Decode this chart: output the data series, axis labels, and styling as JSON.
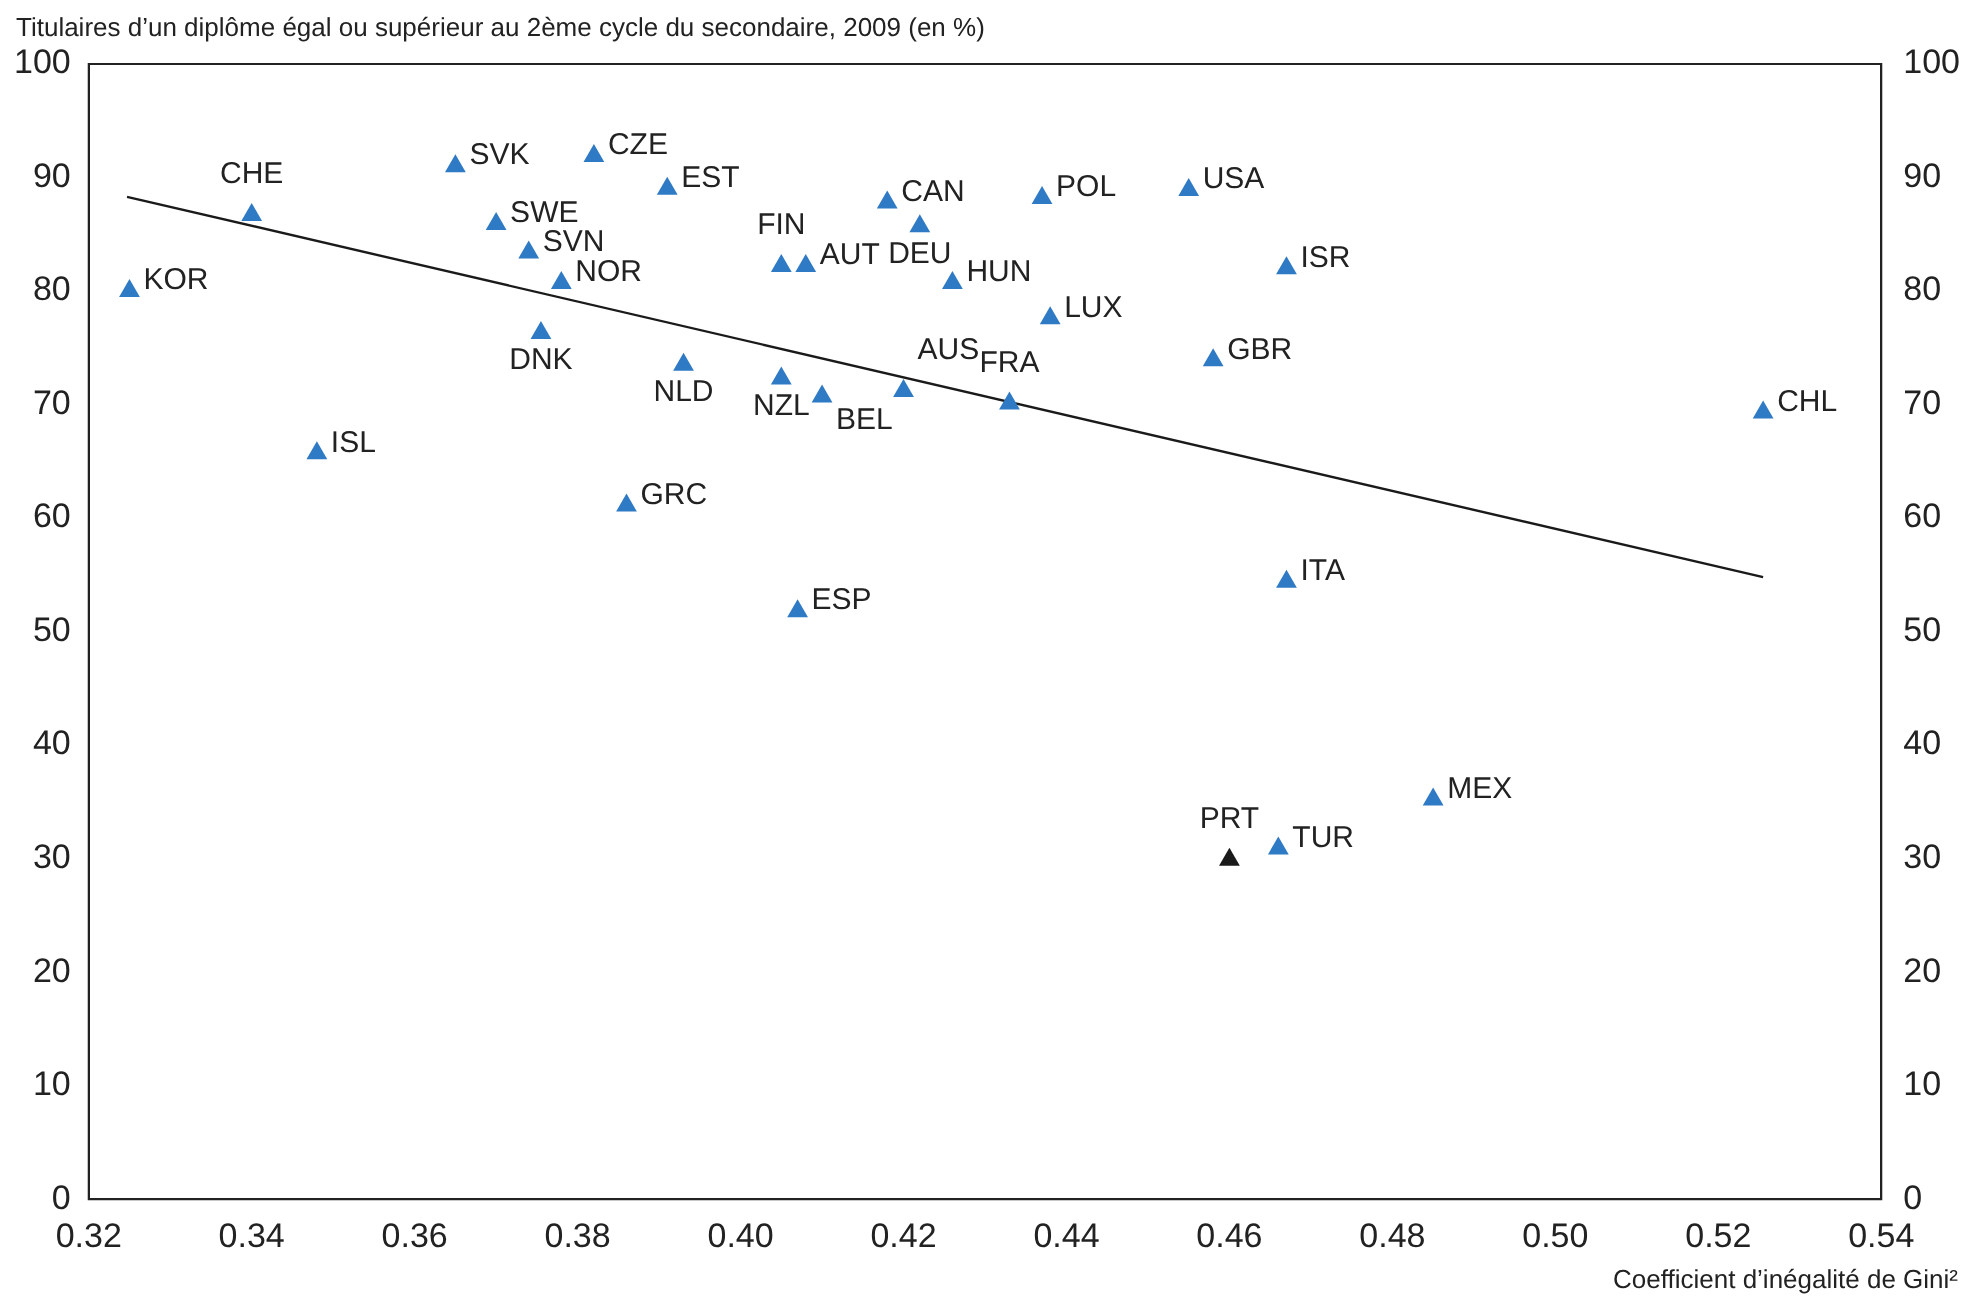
{
  "chart_data": {
    "type": "scatter",
    "ylabel": "Titulaires d’un diplôme égal ou supérieur au 2ème cycle du secondaire, 2009 (en %)",
    "xlabel": "Coefficient d’inégalité de Gini²",
    "xlim": [
      0.32,
      0.54
    ],
    "xticks": [
      {
        "value": 0.32,
        "label": "0.32"
      },
      {
        "value": 0.34,
        "label": "0.34"
      },
      {
        "value": 0.36,
        "label": "0.36"
      },
      {
        "value": 0.38,
        "label": "0.38"
      },
      {
        "value": 0.4,
        "label": "0.40"
      },
      {
        "value": 0.42,
        "label": "0.42"
      },
      {
        "value": 0.44,
        "label": "0.44"
      },
      {
        "value": 0.46,
        "label": "0.46"
      },
      {
        "value": 0.48,
        "label": "0.48"
      },
      {
        "value": 0.5,
        "label": "0.50"
      },
      {
        "value": 0.52,
        "label": "0.52"
      },
      {
        "value": 0.54,
        "label": "0.54"
      }
    ],
    "ylim": [
      0,
      100
    ],
    "yticks": [
      0,
      10,
      20,
      30,
      40,
      50,
      60,
      70,
      80,
      90,
      100
    ],
    "y2lim": [
      0,
      100
    ],
    "y2ticks": [
      0,
      10,
      20,
      30,
      40,
      50,
      60,
      70,
      80,
      90,
      100
    ],
    "grid": false,
    "legend": false,
    "marker": "triangle",
    "series": [
      {
        "color": "#2f7ac4",
        "x": [
          0.325,
          0.34,
          0.365,
          0.382,
          0.37,
          0.374,
          0.378,
          0.3755,
          0.391,
          0.348,
          0.386,
          0.393,
          0.405,
          0.41,
          0.42,
          0.405,
          0.408,
          0.418,
          0.422,
          0.426,
          0.437,
          0.438,
          0.433,
          0.407,
          0.455,
          0.467,
          0.458,
          0.467,
          0.466,
          0.485,
          0.5255
        ],
        "values": [
          80.0,
          86.7,
          91.0,
          91.9,
          85.9,
          83.4,
          80.7,
          76.3,
          89.0,
          65.7,
          61.1,
          73.5,
          72.3,
          70.7,
          71.2,
          82.2,
          82.2,
          87.8,
          85.7,
          80.7,
          88.2,
          77.6,
          70.1,
          51.8,
          88.9,
          82.0,
          73.9,
          54.4,
          30.9,
          35.2,
          69.3
        ]
      },
      {
        "color": "#1a1a1a",
        "x": [
          0.46
        ],
        "values": [
          29.9
        ]
      },
      {
        "type": "line",
        "color": "#1a1a1a",
        "x": [
          0.3247,
          0.5255
        ],
        "values": [
          88.3,
          54.8
        ],
        "marker": "none"
      }
    ],
    "annotations": [
      {
        "text": "KOR",
        "x": 0.325,
        "y": 80.0
      },
      {
        "text": "CHE",
        "x": 0.34,
        "y": 86.7
      },
      {
        "text": "SVK",
        "x": 0.365,
        "y": 91.0
      },
      {
        "text": "CZE",
        "x": 0.382,
        "y": 91.9
      },
      {
        "text": "SWE",
        "x": 0.37,
        "y": 85.9
      },
      {
        "text": "SVN",
        "x": 0.374,
        "y": 83.4
      },
      {
        "text": "NOR",
        "x": 0.378,
        "y": 80.7
      },
      {
        "text": "DNK",
        "x": 0.3755,
        "y": 76.3
      },
      {
        "text": "EST",
        "x": 0.391,
        "y": 89.0
      },
      {
        "text": "ISL",
        "x": 0.348,
        "y": 65.7
      },
      {
        "text": "GRC",
        "x": 0.386,
        "y": 61.1
      },
      {
        "text": "NLD",
        "x": 0.393,
        "y": 73.5
      },
      {
        "text": "NZL",
        "x": 0.405,
        "y": 72.3
      },
      {
        "text": "BEL",
        "x": 0.41,
        "y": 70.7
      },
      {
        "text": "AUS",
        "x": 0.42,
        "y": 71.2
      },
      {
        "text": "FIN",
        "x": 0.405,
        "y": 82.2
      },
      {
        "text": "AUT",
        "x": 0.408,
        "y": 82.2
      },
      {
        "text": "CAN",
        "x": 0.418,
        "y": 87.8
      },
      {
        "text": "DEU",
        "x": 0.422,
        "y": 85.7
      },
      {
        "text": "HUN",
        "x": 0.426,
        "y": 80.7
      },
      {
        "text": "POL",
        "x": 0.437,
        "y": 88.2
      },
      {
        "text": "LUX",
        "x": 0.438,
        "y": 77.6
      },
      {
        "text": "FRA",
        "x": 0.433,
        "y": 70.1
      },
      {
        "text": "ESP",
        "x": 0.407,
        "y": 51.8
      },
      {
        "text": "USA",
        "x": 0.455,
        "y": 88.9
      },
      {
        "text": "ISR",
        "x": 0.467,
        "y": 82.0
      },
      {
        "text": "GBR",
        "x": 0.458,
        "y": 73.9
      },
      {
        "text": "ITA",
        "x": 0.467,
        "y": 54.4
      },
      {
        "text": "TUR",
        "x": 0.466,
        "y": 30.9
      },
      {
        "text": "MEX",
        "x": 0.485,
        "y": 35.2
      },
      {
        "text": "CHL",
        "x": 0.5255,
        "y": 69.3
      },
      {
        "text": "PRT",
        "x": 0.46,
        "y": 29.9
      }
    ]
  }
}
